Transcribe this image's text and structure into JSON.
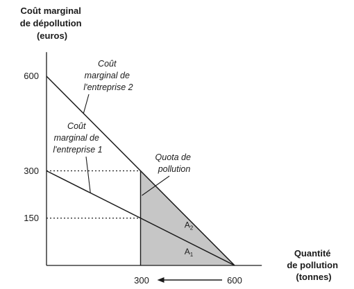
{
  "chart_data": {
    "type": "line",
    "ylabel": [
      "Coût marginal",
      "de dépollution",
      "(euros)"
    ],
    "xlabel": [
      "Quantité",
      "de pollution",
      "(tonnes)"
    ],
    "xlim": [
      0,
      700
    ],
    "ylim": [
      0,
      650
    ],
    "y_ticks": [
      "600",
      "300",
      "150"
    ],
    "x_ticks": [
      "300",
      "600"
    ],
    "series": [
      {
        "name": [
          "Coût",
          "marginal de",
          "l'entreprise 2"
        ],
        "points": [
          [
            0,
            600
          ],
          [
            600,
            0
          ]
        ]
      },
      {
        "name": [
          "Coût",
          "marginal de",
          "l'entreprise 1"
        ],
        "points": [
          [
            0,
            300
          ],
          [
            600,
            0
          ]
        ]
      }
    ],
    "quota": {
      "value": 300,
      "label": [
        "Quota de",
        "pollution"
      ]
    },
    "guides": [
      {
        "y": 300,
        "x_end": 300
      },
      {
        "y": 150,
        "x_end": 300
      }
    ],
    "areas": [
      {
        "name": "A",
        "sub": "2",
        "x": 440,
        "y": 120
      },
      {
        "name": "A",
        "sub": "1",
        "x": 440,
        "y": 35
      }
    ],
    "arrow": {
      "from": 600,
      "to": 300
    },
    "colors": {
      "shade": "#c6c6c6",
      "line": "#1a1a1a"
    }
  }
}
